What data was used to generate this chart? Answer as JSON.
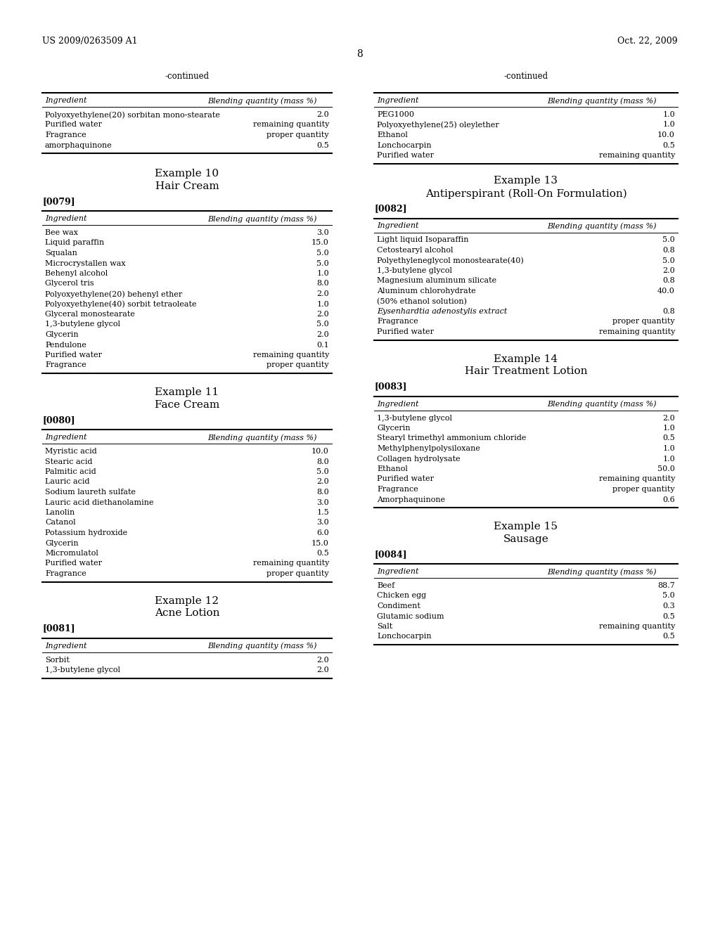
{
  "page_header_left": "US 2009/0263509 A1",
  "page_header_right": "Oct. 22, 2009",
  "page_number": "8",
  "background_color": "#ffffff",
  "left_col": {
    "continued": {
      "title": "-continued",
      "headers": [
        "Ingredient",
        "Blending quantity (mass %)"
      ],
      "rows": [
        [
          "Polyoxyethylene(20) sorbitan mono-stearate",
          "2.0"
        ],
        [
          "Purified water",
          "remaining quantity"
        ],
        [
          "Fragrance",
          "proper quantity"
        ],
        [
          "amorphaquinone",
          "0.5"
        ]
      ]
    },
    "ex10": {
      "num": "Example 10",
      "subtitle": "Hair Cream",
      "ref": "[0079]",
      "headers": [
        "Ingredient",
        "Blending quantity (mass %)"
      ],
      "rows": [
        [
          "Bee wax",
          "3.0"
        ],
        [
          "Liquid paraffin",
          "15.0"
        ],
        [
          "Squalan",
          "5.0"
        ],
        [
          "Microcrystallen wax",
          "5.0"
        ],
        [
          "Behenyl alcohol",
          "1.0"
        ],
        [
          "Glycerol tris",
          "8.0"
        ],
        [
          "Polyoxyethylene(20) behenyl ether",
          "2.0"
        ],
        [
          "Polyoxyethylene(40) sorbit tetraoleate",
          "1.0"
        ],
        [
          "Glyceral monostearate",
          "2.0"
        ],
        [
          "1,3-butylene glycol",
          "5.0"
        ],
        [
          "Glycerin",
          "2.0"
        ],
        [
          "Pendulone",
          "0.1"
        ],
        [
          "Purified water",
          "remaining quantity"
        ],
        [
          "Fragrance",
          "proper quantity"
        ]
      ],
      "italic_rows": []
    },
    "ex11": {
      "num": "Example 11",
      "subtitle": "Face Cream",
      "ref": "[0080]",
      "headers": [
        "Ingredient",
        "Blending quantity (mass %)"
      ],
      "rows": [
        [
          "Myristic acid",
          "10.0"
        ],
        [
          "Stearic acid",
          "8.0"
        ],
        [
          "Palmitic acid",
          "5.0"
        ],
        [
          "Lauric acid",
          "2.0"
        ],
        [
          "Sodium laureth sulfate",
          "8.0"
        ],
        [
          "Lauric acid diethanolamine",
          "3.0"
        ],
        [
          "Lanolin",
          "1.5"
        ],
        [
          "Catanol",
          "3.0"
        ],
        [
          "Potassium hydroxide",
          "6.0"
        ],
        [
          "Glycerin",
          "15.0"
        ],
        [
          "Micromulatol",
          "0.5"
        ],
        [
          "Purified water",
          "remaining quantity"
        ],
        [
          "Fragrance",
          "proper quantity"
        ]
      ],
      "italic_rows": []
    },
    "ex12": {
      "num": "Example 12",
      "subtitle": "Acne Lotion",
      "ref": "[0081]",
      "headers": [
        "Ingredient",
        "Blending quantity (mass %)"
      ],
      "rows": [
        [
          "Sorbit",
          "2.0"
        ],
        [
          "1,3-butylene glycol",
          "2.0"
        ]
      ],
      "italic_rows": []
    }
  },
  "right_col": {
    "continued": {
      "title": "-continued",
      "headers": [
        "Ingredient",
        "Blending quantity (mass %)"
      ],
      "rows": [
        [
          "PEG1000",
          "1.0"
        ],
        [
          "Polyoxyethylene(25) oleylether",
          "1.0"
        ],
        [
          "Ethanol",
          "10.0"
        ],
        [
          "Lonchocarpin",
          "0.5"
        ],
        [
          "Purified water",
          "remaining quantity"
        ]
      ]
    },
    "ex13": {
      "num": "Example 13",
      "subtitle": "Antiperspirant (Roll-On Formulation)",
      "ref": "[0082]",
      "headers": [
        "Ingredient",
        "Blending quantity (mass %)"
      ],
      "rows": [
        [
          "Light liquid Isoparaffin",
          "5.0"
        ],
        [
          "Cetostearyl alcohol",
          "0.8"
        ],
        [
          "Polyethyleneglycol monostearate(40)",
          "5.0"
        ],
        [
          "1,3-butylene glycol",
          "2.0"
        ],
        [
          "Magnesium aluminum silicate",
          "0.8"
        ],
        [
          "Aluminum chlorohydrate",
          "40.0"
        ],
        [
          "(50% ethanol solution)",
          ""
        ],
        [
          "Eysenhardtia adenostylis extract",
          "0.8"
        ],
        [
          "Fragrance",
          "proper quantity"
        ],
        [
          "Purified water",
          "remaining quantity"
        ]
      ],
      "italic_rows": [
        7
      ]
    },
    "ex14": {
      "num": "Example 14",
      "subtitle": "Hair Treatment Lotion",
      "ref": "[0083]",
      "headers": [
        "Ingredient",
        "Blending quantity (mass %)"
      ],
      "rows": [
        [
          "1,3-butylene glycol",
          "2.0"
        ],
        [
          "Glycerin",
          "1.0"
        ],
        [
          "Stearyl trimethyl ammonium chloride",
          "0.5"
        ],
        [
          "Methylphenylpolysiloxane",
          "1.0"
        ],
        [
          "Collagen hydrolysate",
          "1.0"
        ],
        [
          "Ethanol",
          "50.0"
        ],
        [
          "Purified water",
          "remaining quantity"
        ],
        [
          "Fragrance",
          "proper quantity"
        ],
        [
          "Amorphaquinone",
          "0.6"
        ]
      ],
      "italic_rows": []
    },
    "ex15": {
      "num": "Example 15",
      "subtitle": "Sausage",
      "ref": "[0084]",
      "headers": [
        "Ingredient",
        "Blending quantity (mass %)"
      ],
      "rows": [
        [
          "Beef",
          "88.7"
        ],
        [
          "Chicken egg",
          "5.0"
        ],
        [
          "Condiment",
          "0.3"
        ],
        [
          "Glutamic sodium",
          "0.5"
        ],
        [
          "Salt",
          "remaining quantity"
        ],
        [
          "Lonchocarpin",
          "0.5"
        ]
      ],
      "italic_rows": []
    }
  }
}
